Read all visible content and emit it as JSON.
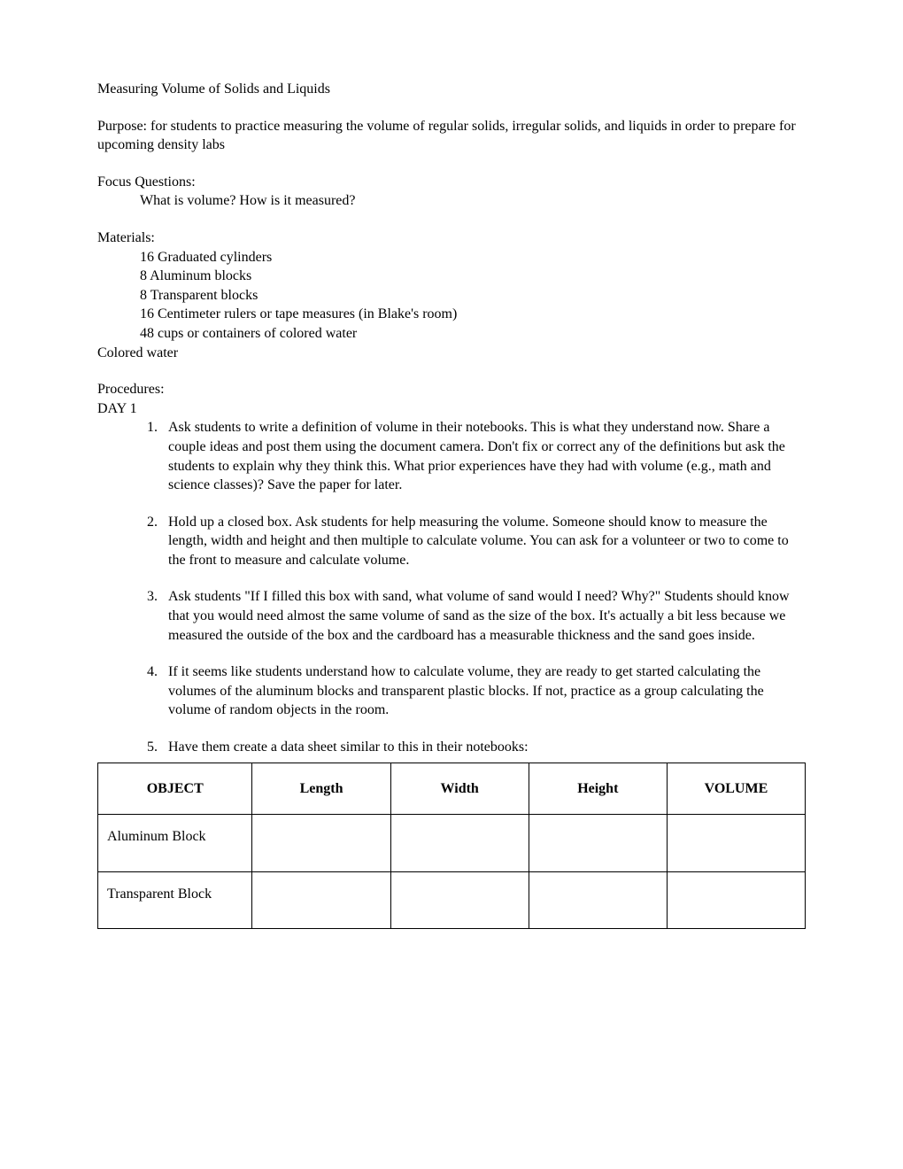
{
  "title": "Measuring Volume of Solids and Liquids",
  "purpose": "Purpose: for students to practice measuring the volume of regular solids, irregular solids, and liquids in order to prepare for upcoming density labs",
  "focus": {
    "label": "Focus Questions:",
    "text": "What is volume? How is it measured?"
  },
  "materials": {
    "label": "Materials:",
    "items": [
      "16 Graduated cylinders",
      "8 Aluminum blocks",
      "8 Transparent blocks",
      "16 Centimeter rulers or tape measures (in Blake's room)",
      "48 cups or containers of colored water"
    ],
    "trailing": "Colored water"
  },
  "procedures": {
    "label": "Procedures:",
    "day_label": "DAY 1",
    "steps": [
      "Ask students to write a definition of volume in their notebooks. This is what they understand now. Share a couple ideas and post them using the document camera. Don't fix or correct any of the definitions but ask the students to explain why they think this. What prior experiences have they had with volume (e.g., math and science classes)? Save the paper for later.",
      "Hold up a closed box. Ask students for help measuring the volume. Someone should know to measure the length, width and height and then multiple to calculate volume. You can ask for a volunteer or two to come to the front to measure and calculate volume.",
      "Ask students \"If I filled this box with sand, what volume of sand would I need? Why?\" Students should know that you would need almost the same volume of sand as the size of the box. It's actually a bit less because we measured the outside of the box and the cardboard has a measurable thickness and the sand goes inside.",
      "If it seems like students understand how to calculate volume, they are ready to get started calculating the volumes of the aluminum blocks and transparent plastic blocks. If not, practice as a group calculating the volume of random objects in the room.",
      "Have them create a data sheet similar to this in their notebooks:"
    ]
  },
  "table": {
    "columns": [
      "OBJECT",
      "Length",
      "Width",
      "Height",
      "VOLUME"
    ],
    "rows": [
      [
        "Aluminum Block",
        "",
        "",
        "",
        ""
      ],
      [
        "Transparent Block",
        "",
        "",
        "",
        ""
      ]
    ]
  }
}
